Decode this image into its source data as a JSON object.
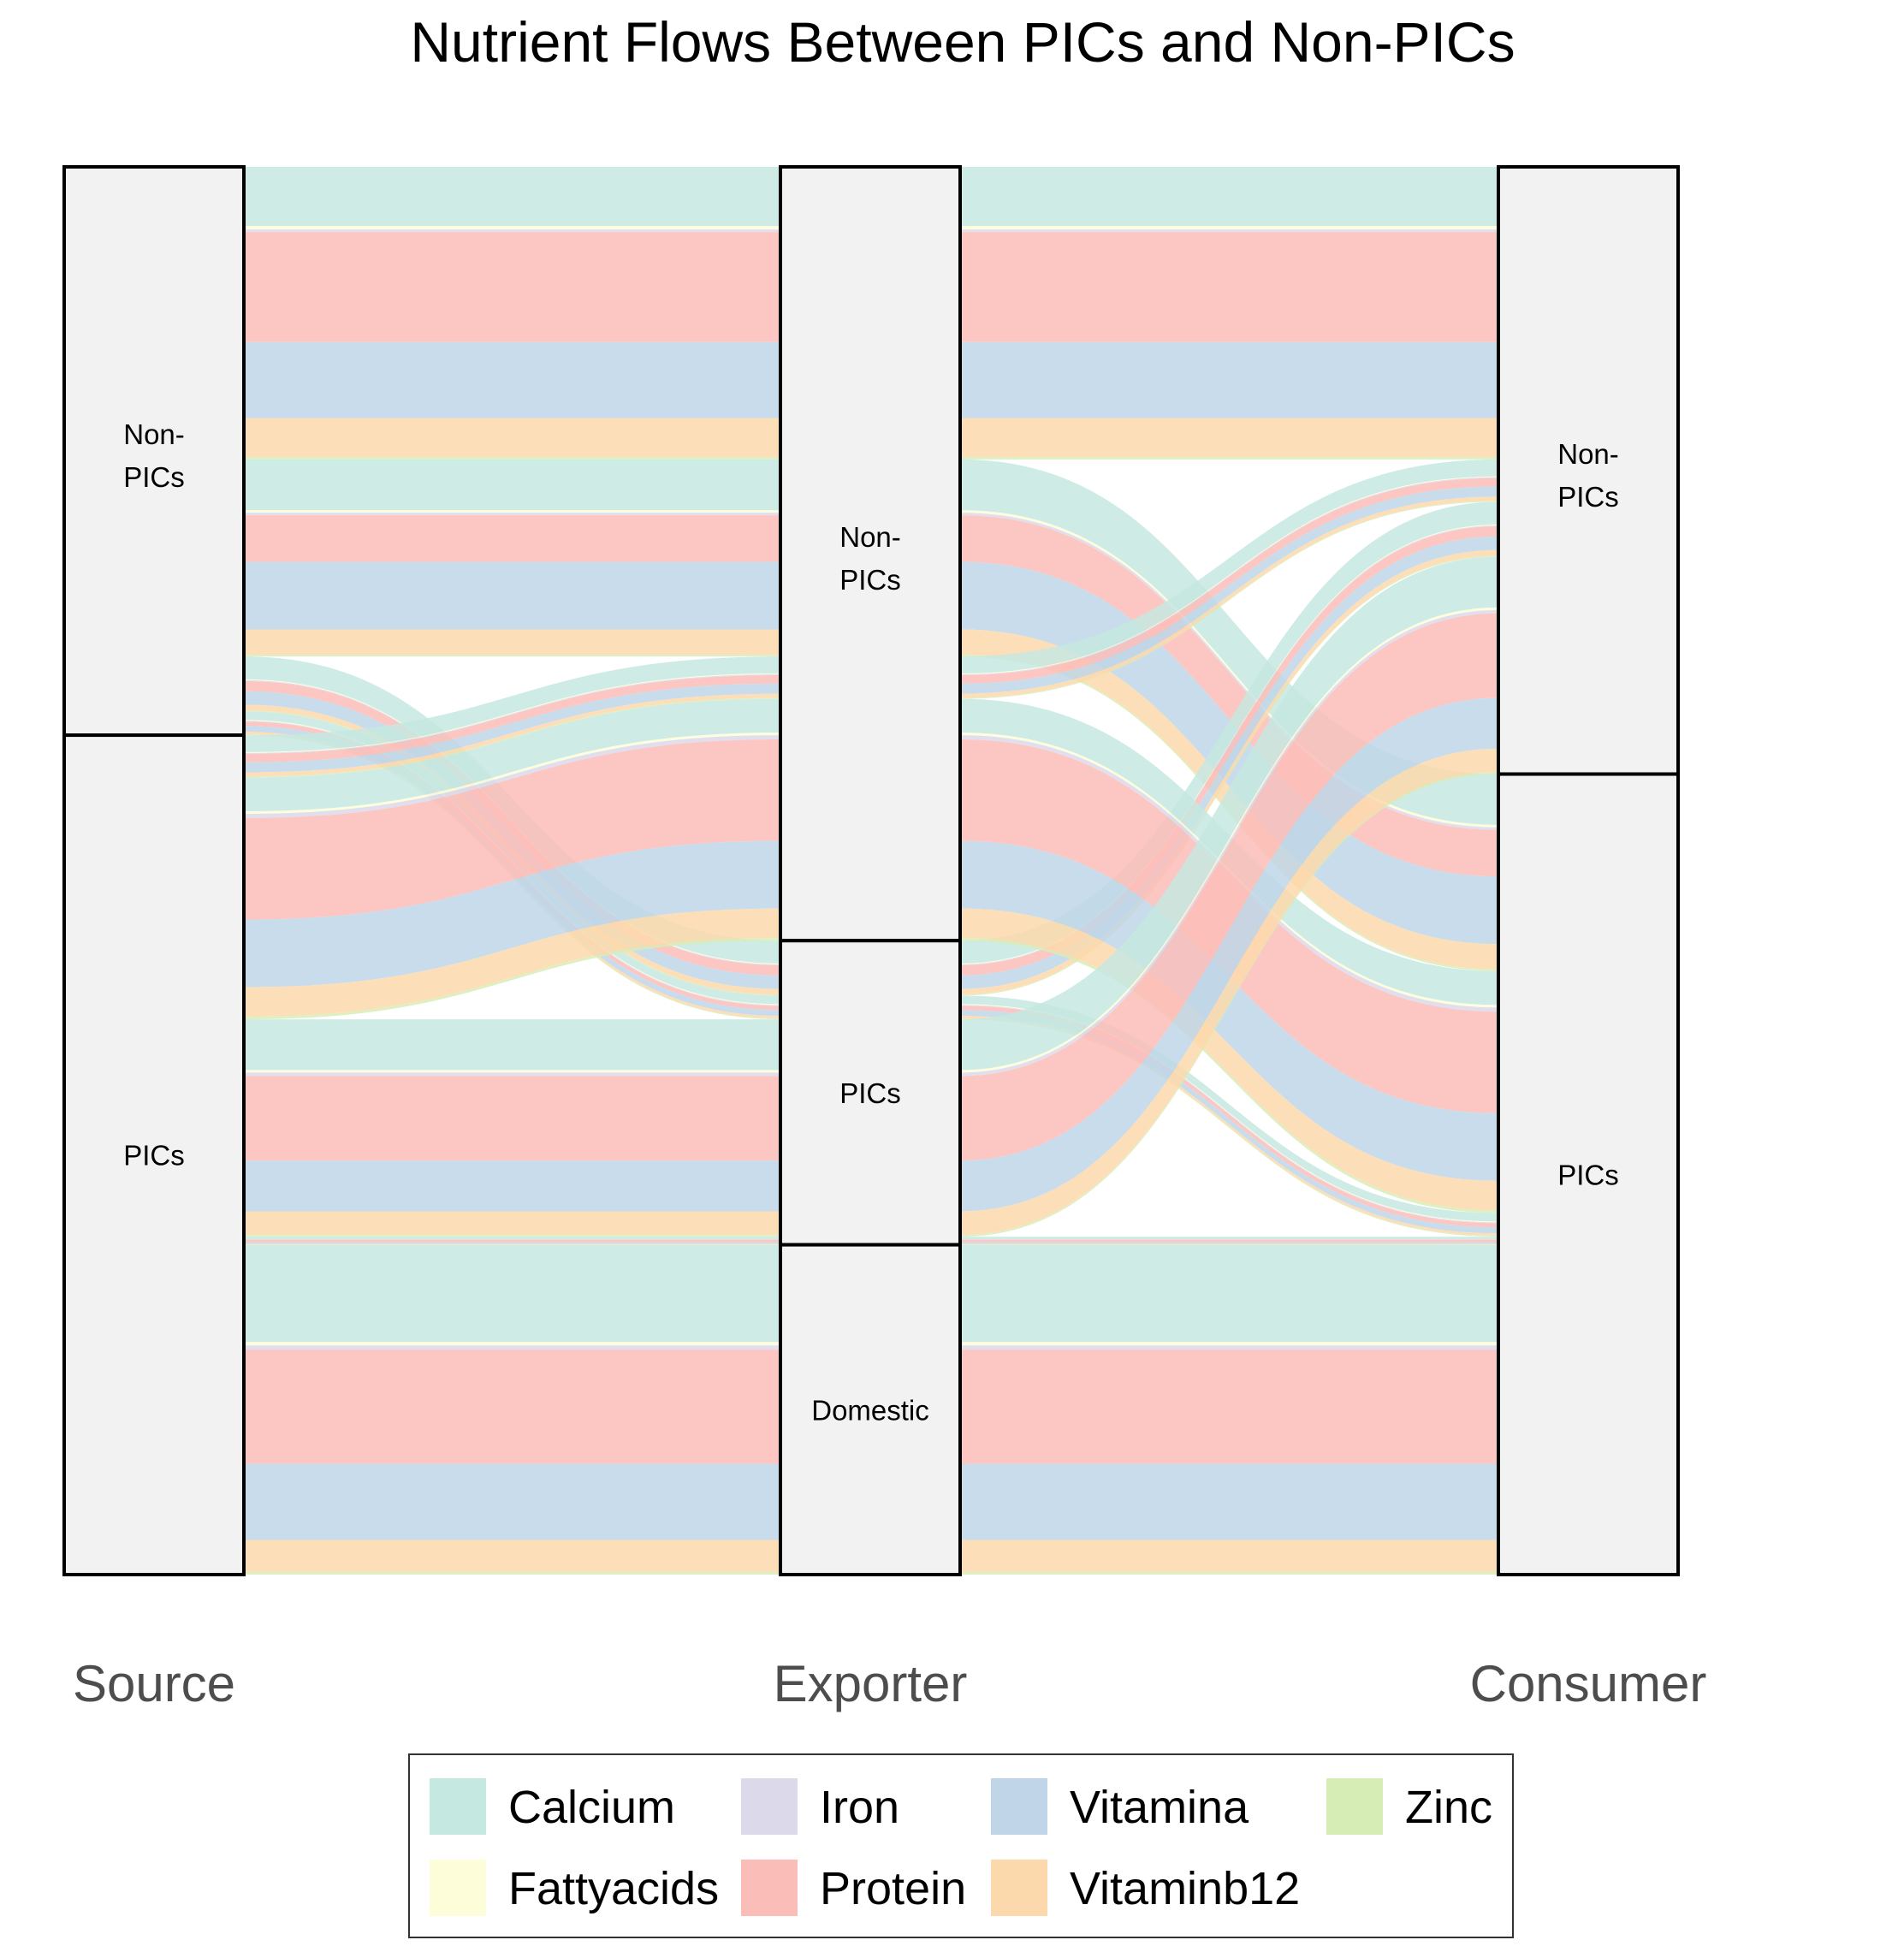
{
  "chart_data": {
    "type": "alluvial",
    "title": "Nutrient Flows Between PICs and Non-PICs",
    "axes": [
      "Source",
      "Exporter",
      "Consumer"
    ],
    "nodes": {
      "Source": [
        "Non-PICs",
        "PICs"
      ],
      "Exporter": [
        "Non-PICs",
        "PICs",
        "Domestic"
      ],
      "Consumer": [
        "Non-PICs",
        "PICs"
      ]
    },
    "nutrients": [
      "Calcium",
      "Fattyacids",
      "Iron",
      "Protein",
      "Vitamina",
      "Vitaminb12",
      "Zinc"
    ],
    "colors": {
      "Calcium": "#c5e8e0",
      "Fattyacids": "#fdfdd9",
      "Iron": "#dcd9ea",
      "Protein": "#fbbdb8",
      "Vitamina": "#c0d6e8",
      "Vitaminb12": "#fbd9ac",
      "Zinc": "#d7edb6"
    },
    "stratum_order_note": "top to bottom",
    "flows": [
      {
        "source": "Non-PICs",
        "exporter": "Non-PICs",
        "consumer": "Non-PICs",
        "values": {
          "Calcium": 7.0,
          "Fattyacids": 0.4,
          "Iron": 0.3,
          "Protein": 13.0,
          "Vitamina": 9.0,
          "Vitaminb12": 4.6,
          "Zinc": 0.3
        }
      },
      {
        "source": "Non-PICs",
        "exporter": "Non-PICs",
        "consumer": "PICs",
        "values": {
          "Calcium": 6.0,
          "Fattyacids": 0.3,
          "Iron": 0.3,
          "Protein": 5.5,
          "Vitamina": 8.0,
          "Vitaminb12": 3.0,
          "Zinc": 0.2
        }
      },
      {
        "source": "Non-PICs",
        "exporter": "PICs",
        "consumer": "Non-PICs",
        "values": {
          "Calcium": 2.7,
          "Fattyacids": 0.1,
          "Iron": 0.1,
          "Protein": 1.2,
          "Vitamina": 1.6,
          "Vitaminb12": 0.7,
          "Zinc": 0.1
        }
      },
      {
        "source": "Non-PICs",
        "exporter": "PICs",
        "consumer": "PICs",
        "values": {
          "Calcium": 1.0,
          "Fattyacids": 0.1,
          "Iron": 0.1,
          "Protein": 0.5,
          "Vitamina": 0.7,
          "Vitaminb12": 0.3,
          "Zinc": 0.1
        }
      },
      {
        "source": "PICs",
        "exporter": "Non-PICs",
        "consumer": "Non-PICs",
        "values": {
          "Calcium": 2.0,
          "Fattyacids": 0.1,
          "Iron": 0.1,
          "Protein": 1.0,
          "Vitamina": 1.2,
          "Vitaminb12": 0.5,
          "Zinc": 0.1
        }
      },
      {
        "source": "PICs",
        "exporter": "Non-PICs",
        "consumer": "PICs",
        "values": {
          "Calcium": 4.0,
          "Fattyacids": 0.3,
          "Iron": 0.5,
          "Protein": 12.0,
          "Vitamina": 8.0,
          "Vitaminb12": 3.5,
          "Zinc": 0.3
        }
      },
      {
        "source": "PICs",
        "exporter": "PICs",
        "consumer": "Non-PICs",
        "values": {
          "Calcium": 6.0,
          "Fattyacids": 0.3,
          "Iron": 0.4,
          "Protein": 10.0,
          "Vitamina": 6.0,
          "Vitaminb12": 2.8,
          "Zinc": 0.2
        }
      },
      {
        "source": "PICs",
        "exporter": "PICs",
        "consumer": "PICs",
        "values": {
          "Calcium": 0.3,
          "Fattyacids": 0.02,
          "Iron": 0.02,
          "Protein": 0.3,
          "Vitamina": 0.2,
          "Vitaminb12": 0.1,
          "Zinc": 0.02
        }
      },
      {
        "source": "PICs",
        "exporter": "Domestic",
        "consumer": "PICs",
        "values": {
          "Calcium": 11.5,
          "Fattyacids": 0.4,
          "Iron": 0.5,
          "Protein": 13.5,
          "Vitamina": 9.0,
          "Vitaminb12": 3.8,
          "Zinc": 0.3
        }
      }
    ]
  },
  "legend": {
    "items": [
      "Calcium",
      "Iron",
      "Vitamina",
      "Zinc",
      "Fattyacids",
      "Protein",
      "Vitaminb12"
    ]
  }
}
